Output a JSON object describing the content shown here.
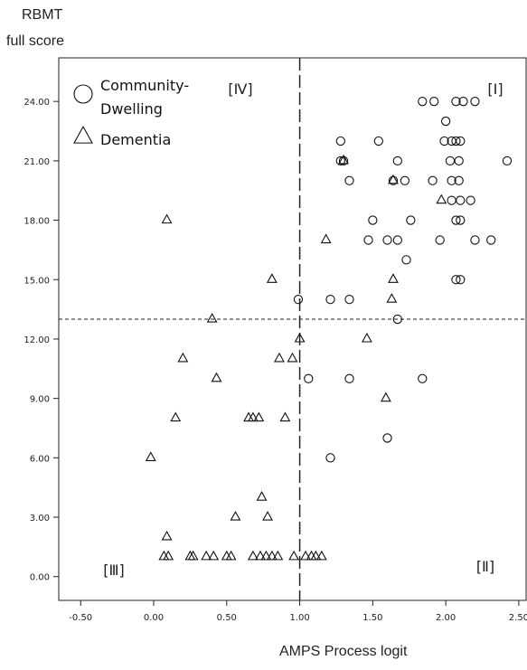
{
  "chart_data": {
    "type": "scatter",
    "ylabel_lines": [
      "RBMT",
      "full score"
    ],
    "xlabel": "AMPS Process logit",
    "xlim": [
      -0.65,
      2.55
    ],
    "ylim": [
      -1.2,
      26.2
    ],
    "x_ticks": [
      -0.5,
      0.0,
      0.5,
      1.0,
      1.5,
      2.0,
      2.5
    ],
    "x_tick_labels": [
      "-0.50",
      "0.00",
      "0.50",
      "1.00",
      "1.50",
      "2.00",
      "2.50"
    ],
    "y_ticks": [
      0,
      3,
      6,
      9,
      12,
      15,
      18,
      21,
      24
    ],
    "y_tick_labels": [
      "0.00",
      "3.00",
      "6.00",
      "9.00",
      "12.00",
      "15.00",
      "18.00",
      "21.00",
      "24.00"
    ],
    "grid": false,
    "reference_lines": {
      "vertical_x": 1.0,
      "horizontal_y": 13.0
    },
    "quadrant_labels": [
      {
        "text": "[Ⅰ]",
        "position": "top-right"
      },
      {
        "text": "[Ⅱ]",
        "position": "bottom-right"
      },
      {
        "text": "[Ⅲ]",
        "position": "bottom-left"
      },
      {
        "text": "[Ⅳ]",
        "position": "top-left"
      }
    ],
    "legend": {
      "position": "top-left",
      "entries": [
        {
          "marker": "circle",
          "lines": [
            "Community-",
            "Dwelling"
          ]
        },
        {
          "marker": "triangle",
          "lines": [
            "Dementia"
          ]
        }
      ]
    },
    "series": [
      {
        "name": "Community-Dwelling",
        "marker": "circle",
        "color": "#111111",
        "points": [
          [
            1.84,
            24
          ],
          [
            1.92,
            24
          ],
          [
            2.07,
            24
          ],
          [
            2.12,
            24
          ],
          [
            2.2,
            24
          ],
          [
            2.0,
            23
          ],
          [
            1.28,
            22
          ],
          [
            1.54,
            22
          ],
          [
            1.99,
            22
          ],
          [
            2.04,
            22
          ],
          [
            2.07,
            22
          ],
          [
            2.1,
            22
          ],
          [
            1.28,
            21
          ],
          [
            1.3,
            21
          ],
          [
            1.67,
            21
          ],
          [
            2.03,
            21
          ],
          [
            2.09,
            21
          ],
          [
            2.42,
            21
          ],
          [
            1.34,
            20
          ],
          [
            1.64,
            20
          ],
          [
            1.72,
            20
          ],
          [
            1.91,
            20
          ],
          [
            2.04,
            20
          ],
          [
            2.09,
            20
          ],
          [
            2.04,
            19
          ],
          [
            2.1,
            19
          ],
          [
            2.17,
            19
          ],
          [
            1.5,
            18
          ],
          [
            1.76,
            18
          ],
          [
            2.07,
            18
          ],
          [
            2.1,
            18
          ],
          [
            1.47,
            17
          ],
          [
            1.6,
            17
          ],
          [
            1.67,
            17
          ],
          [
            1.96,
            17
          ],
          [
            2.2,
            17
          ],
          [
            2.31,
            17
          ],
          [
            1.73,
            16
          ],
          [
            2.07,
            15
          ],
          [
            2.1,
            15
          ],
          [
            0.99,
            14
          ],
          [
            1.21,
            14
          ],
          [
            1.34,
            14
          ],
          [
            1.67,
            13
          ],
          [
            1.06,
            10
          ],
          [
            1.34,
            10
          ],
          [
            1.84,
            10
          ],
          [
            1.6,
            7
          ],
          [
            1.21,
            6
          ]
        ]
      },
      {
        "name": "Dementia",
        "marker": "triangle",
        "color": "#111111",
        "points": [
          [
            1.3,
            21
          ],
          [
            1.64,
            20
          ],
          [
            1.97,
            19
          ],
          [
            0.09,
            18
          ],
          [
            1.18,
            17
          ],
          [
            0.81,
            15
          ],
          [
            1.64,
            15
          ],
          [
            1.63,
            14
          ],
          [
            0.4,
            13
          ],
          [
            1.0,
            12
          ],
          [
            1.46,
            12
          ],
          [
            0.2,
            11
          ],
          [
            0.86,
            11
          ],
          [
            0.95,
            11
          ],
          [
            0.43,
            10
          ],
          [
            1.59,
            9
          ],
          [
            0.15,
            8
          ],
          [
            0.65,
            8
          ],
          [
            0.68,
            8
          ],
          [
            0.72,
            8
          ],
          [
            0.9,
            8
          ],
          [
            -0.02,
            6
          ],
          [
            0.74,
            4
          ],
          [
            0.56,
            3
          ],
          [
            0.78,
            3
          ],
          [
            0.09,
            2
          ],
          [
            0.07,
            1
          ],
          [
            0.1,
            1
          ],
          [
            0.25,
            1
          ],
          [
            0.27,
            1
          ],
          [
            0.36,
            1
          ],
          [
            0.41,
            1
          ],
          [
            0.5,
            1
          ],
          [
            0.53,
            1
          ],
          [
            0.68,
            1
          ],
          [
            0.73,
            1
          ],
          [
            0.77,
            1
          ],
          [
            0.81,
            1
          ],
          [
            0.85,
            1
          ],
          [
            0.96,
            1
          ],
          [
            1.04,
            1
          ],
          [
            1.08,
            1
          ],
          [
            1.11,
            1
          ],
          [
            1.15,
            1
          ]
        ]
      }
    ]
  }
}
